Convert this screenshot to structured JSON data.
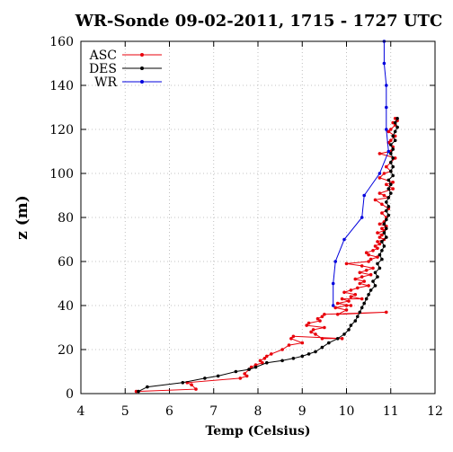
{
  "chart_data": {
    "type": "line",
    "title": "WR-Sonde 09-02-2011, 1715 - 1727 UTC",
    "xlabel": "Temp (Celsius)",
    "ylabel": "z (m)",
    "xlim": [
      4,
      12
    ],
    "ylim": [
      0,
      160
    ],
    "x_ticks": [
      "4",
      "5",
      "6",
      "7",
      "8",
      "9",
      "10",
      "11",
      "12"
    ],
    "y_ticks": [
      "0",
      "20",
      "40",
      "60",
      "80",
      "100",
      "120",
      "140",
      "160"
    ],
    "grid": true,
    "legend_position": "top-left",
    "series": [
      {
        "name": "ASC",
        "color": "#e8000b",
        "points": [
          [
            5.25,
            1
          ],
          [
            6.6,
            2
          ],
          [
            6.5,
            4
          ],
          [
            6.4,
            5
          ],
          [
            7.6,
            7
          ],
          [
            7.75,
            8
          ],
          [
            7.7,
            9
          ],
          [
            7.8,
            11
          ],
          [
            7.85,
            12
          ],
          [
            7.95,
            13
          ],
          [
            8.1,
            14
          ],
          [
            8.05,
            15
          ],
          [
            8.15,
            16
          ],
          [
            8.2,
            17
          ],
          [
            8.3,
            18
          ],
          [
            8.55,
            20
          ],
          [
            8.7,
            22
          ],
          [
            9.0,
            23
          ],
          [
            8.75,
            25
          ],
          [
            8.8,
            26
          ],
          [
            9.9,
            25
          ],
          [
            9.45,
            25
          ],
          [
            9.3,
            27
          ],
          [
            9.2,
            28
          ],
          [
            9.25,
            29
          ],
          [
            9.5,
            30
          ],
          [
            9.1,
            31
          ],
          [
            9.15,
            32
          ],
          [
            9.4,
            33
          ],
          [
            9.35,
            34
          ],
          [
            9.45,
            35
          ],
          [
            9.5,
            36
          ],
          [
            10.9,
            37
          ],
          [
            9.8,
            36
          ],
          [
            10.0,
            38
          ],
          [
            9.75,
            39
          ],
          [
            10.0,
            40
          ],
          [
            10.1,
            40
          ],
          [
            9.8,
            41
          ],
          [
            10.05,
            42
          ],
          [
            9.9,
            43
          ],
          [
            10.35,
            43
          ],
          [
            10.1,
            44
          ],
          [
            10.2,
            45
          ],
          [
            9.95,
            46
          ],
          [
            10.1,
            47
          ],
          [
            10.25,
            48
          ],
          [
            10.5,
            49
          ],
          [
            10.3,
            50
          ],
          [
            10.4,
            51
          ],
          [
            10.2,
            52
          ],
          [
            10.35,
            53
          ],
          [
            10.55,
            54
          ],
          [
            10.3,
            55
          ],
          [
            10.45,
            56
          ],
          [
            10.6,
            57
          ],
          [
            10.35,
            58
          ],
          [
            10.0,
            59
          ],
          [
            10.5,
            60
          ],
          [
            10.55,
            61
          ],
          [
            10.7,
            62
          ],
          [
            10.5,
            63
          ],
          [
            10.45,
            64
          ],
          [
            10.6,
            65
          ],
          [
            10.7,
            66
          ],
          [
            10.65,
            67
          ],
          [
            10.75,
            68
          ],
          [
            10.7,
            69
          ],
          [
            10.85,
            70
          ],
          [
            10.75,
            71
          ],
          [
            10.8,
            72
          ],
          [
            10.7,
            73
          ],
          [
            10.85,
            74
          ],
          [
            10.8,
            75
          ],
          [
            10.9,
            76
          ],
          [
            10.75,
            77
          ],
          [
            10.85,
            78
          ],
          [
            10.9,
            80
          ],
          [
            10.8,
            82
          ],
          [
            10.95,
            84
          ],
          [
            10.8,
            86
          ],
          [
            10.65,
            88
          ],
          [
            10.95,
            89
          ],
          [
            10.85,
            90
          ],
          [
            10.75,
            91
          ],
          [
            11.05,
            93
          ],
          [
            10.9,
            95
          ],
          [
            11.05,
            96
          ],
          [
            10.75,
            98
          ],
          [
            10.85,
            100
          ],
          [
            11.0,
            101
          ],
          [
            10.9,
            103
          ],
          [
            11.0,
            105
          ],
          [
            11.1,
            107
          ],
          [
            10.75,
            109
          ],
          [
            11.0,
            110
          ],
          [
            11.05,
            112
          ],
          [
            10.95,
            114
          ],
          [
            11.0,
            115
          ],
          [
            11.1,
            117
          ],
          [
            10.95,
            119
          ],
          [
            11.0,
            120
          ],
          [
            11.1,
            122
          ],
          [
            11.05,
            123
          ],
          [
            11.15,
            124
          ],
          [
            11.1,
            125
          ]
        ]
      },
      {
        "name": "DES",
        "color": "#000000",
        "points": [
          [
            11.15,
            125
          ],
          [
            11.1,
            123
          ],
          [
            11.15,
            121
          ],
          [
            11.1,
            119
          ],
          [
            11.05,
            117
          ],
          [
            11.1,
            115
          ],
          [
            11.0,
            113
          ],
          [
            11.05,
            111
          ],
          [
            11.0,
            109
          ],
          [
            11.05,
            107
          ],
          [
            11.0,
            105
          ],
          [
            11.05,
            103
          ],
          [
            11.0,
            101
          ],
          [
            11.05,
            99
          ],
          [
            10.95,
            97
          ],
          [
            11.0,
            95
          ],
          [
            10.95,
            93
          ],
          [
            11.0,
            91
          ],
          [
            10.95,
            89
          ],
          [
            10.9,
            87
          ],
          [
            10.95,
            85
          ],
          [
            10.9,
            83
          ],
          [
            10.95,
            81
          ],
          [
            10.9,
            79
          ],
          [
            10.85,
            77
          ],
          [
            10.9,
            75
          ],
          [
            10.85,
            73
          ],
          [
            10.9,
            71
          ],
          [
            10.8,
            69
          ],
          [
            10.85,
            67
          ],
          [
            10.8,
            65
          ],
          [
            10.75,
            63
          ],
          [
            10.8,
            61
          ],
          [
            10.7,
            59
          ],
          [
            10.75,
            57
          ],
          [
            10.65,
            55
          ],
          [
            10.7,
            53
          ],
          [
            10.6,
            51
          ],
          [
            10.65,
            49
          ],
          [
            10.55,
            47
          ],
          [
            10.5,
            45
          ],
          [
            10.45,
            43
          ],
          [
            10.4,
            41
          ],
          [
            10.35,
            39
          ],
          [
            10.3,
            37
          ],
          [
            10.25,
            35
          ],
          [
            10.2,
            33
          ],
          [
            10.1,
            31
          ],
          [
            10.05,
            29
          ],
          [
            9.95,
            27
          ],
          [
            9.8,
            25
          ],
          [
            9.6,
            23
          ],
          [
            9.45,
            21
          ],
          [
            9.3,
            19
          ],
          [
            9.15,
            18
          ],
          [
            9.0,
            17
          ],
          [
            8.8,
            16
          ],
          [
            8.55,
            15
          ],
          [
            8.2,
            14
          ],
          [
            7.95,
            12
          ],
          [
            7.8,
            11
          ],
          [
            7.5,
            10
          ],
          [
            7.1,
            8
          ],
          [
            6.8,
            7
          ],
          [
            6.3,
            5
          ],
          [
            5.5,
            3
          ],
          [
            5.3,
            1
          ]
        ]
      },
      {
        "name": "WR",
        "color": "#0000dd",
        "points": [
          [
            9.7,
            40
          ],
          [
            9.7,
            50
          ],
          [
            9.75,
            60
          ],
          [
            9.95,
            70
          ],
          [
            10.35,
            80
          ],
          [
            10.4,
            90
          ],
          [
            10.75,
            100
          ],
          [
            10.95,
            110
          ],
          [
            10.9,
            120
          ],
          [
            10.9,
            130
          ],
          [
            10.9,
            140
          ],
          [
            10.85,
            150
          ],
          [
            10.85,
            160
          ]
        ]
      }
    ]
  }
}
